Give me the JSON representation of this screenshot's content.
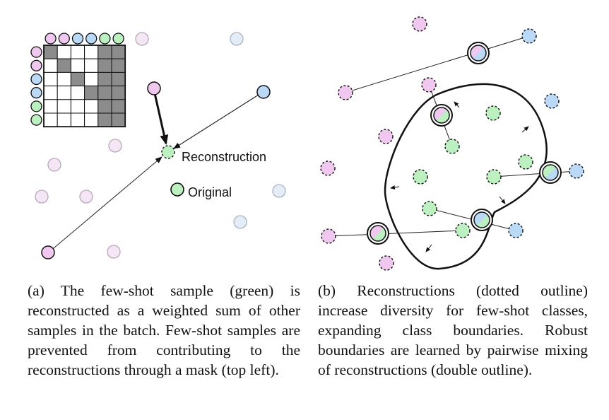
{
  "panel_a": {
    "reconstruction_label": "Reconstruction",
    "original_label": "Original",
    "caption": "(a) The few-shot sample (green) is reconstructed as a weighted sum of other samples in the batch.  Few-shot samples are prevented from contributing to the reconstructions through a mask (top left).",
    "mask_grid": {
      "rows": 6,
      "cols": 6,
      "row_classes": [
        "pink",
        "pink",
        "blue",
        "blue",
        "green",
        "green"
      ],
      "col_classes": [
        "pink",
        "pink",
        "blue",
        "blue",
        "green",
        "green"
      ],
      "masked": [
        [
          1,
          0,
          0,
          0,
          1,
          1
        ],
        [
          0,
          1,
          0,
          0,
          1,
          1
        ],
        [
          0,
          0,
          1,
          0,
          1,
          1
        ],
        [
          0,
          0,
          0,
          1,
          1,
          1
        ],
        [
          0,
          0,
          0,
          0,
          1,
          1
        ],
        [
          0,
          0,
          0,
          0,
          1,
          1
        ]
      ]
    }
  },
  "panel_b": {
    "caption": "(b) Reconstructions (dotted outline) increase diversity for few-shot classes, expanding class boundaries.  Robust boundaries are learned by pairwise mixing of reconstructions (double outline)."
  },
  "colors": {
    "pink": "#f0c8ef",
    "blue": "#b9d9f6",
    "green": "#bdf0c0",
    "pink_faded": "#f4e6f4",
    "blue_faded": "#e4edf7",
    "mask_on": "#8c8c8c",
    "outline": "#111111"
  }
}
